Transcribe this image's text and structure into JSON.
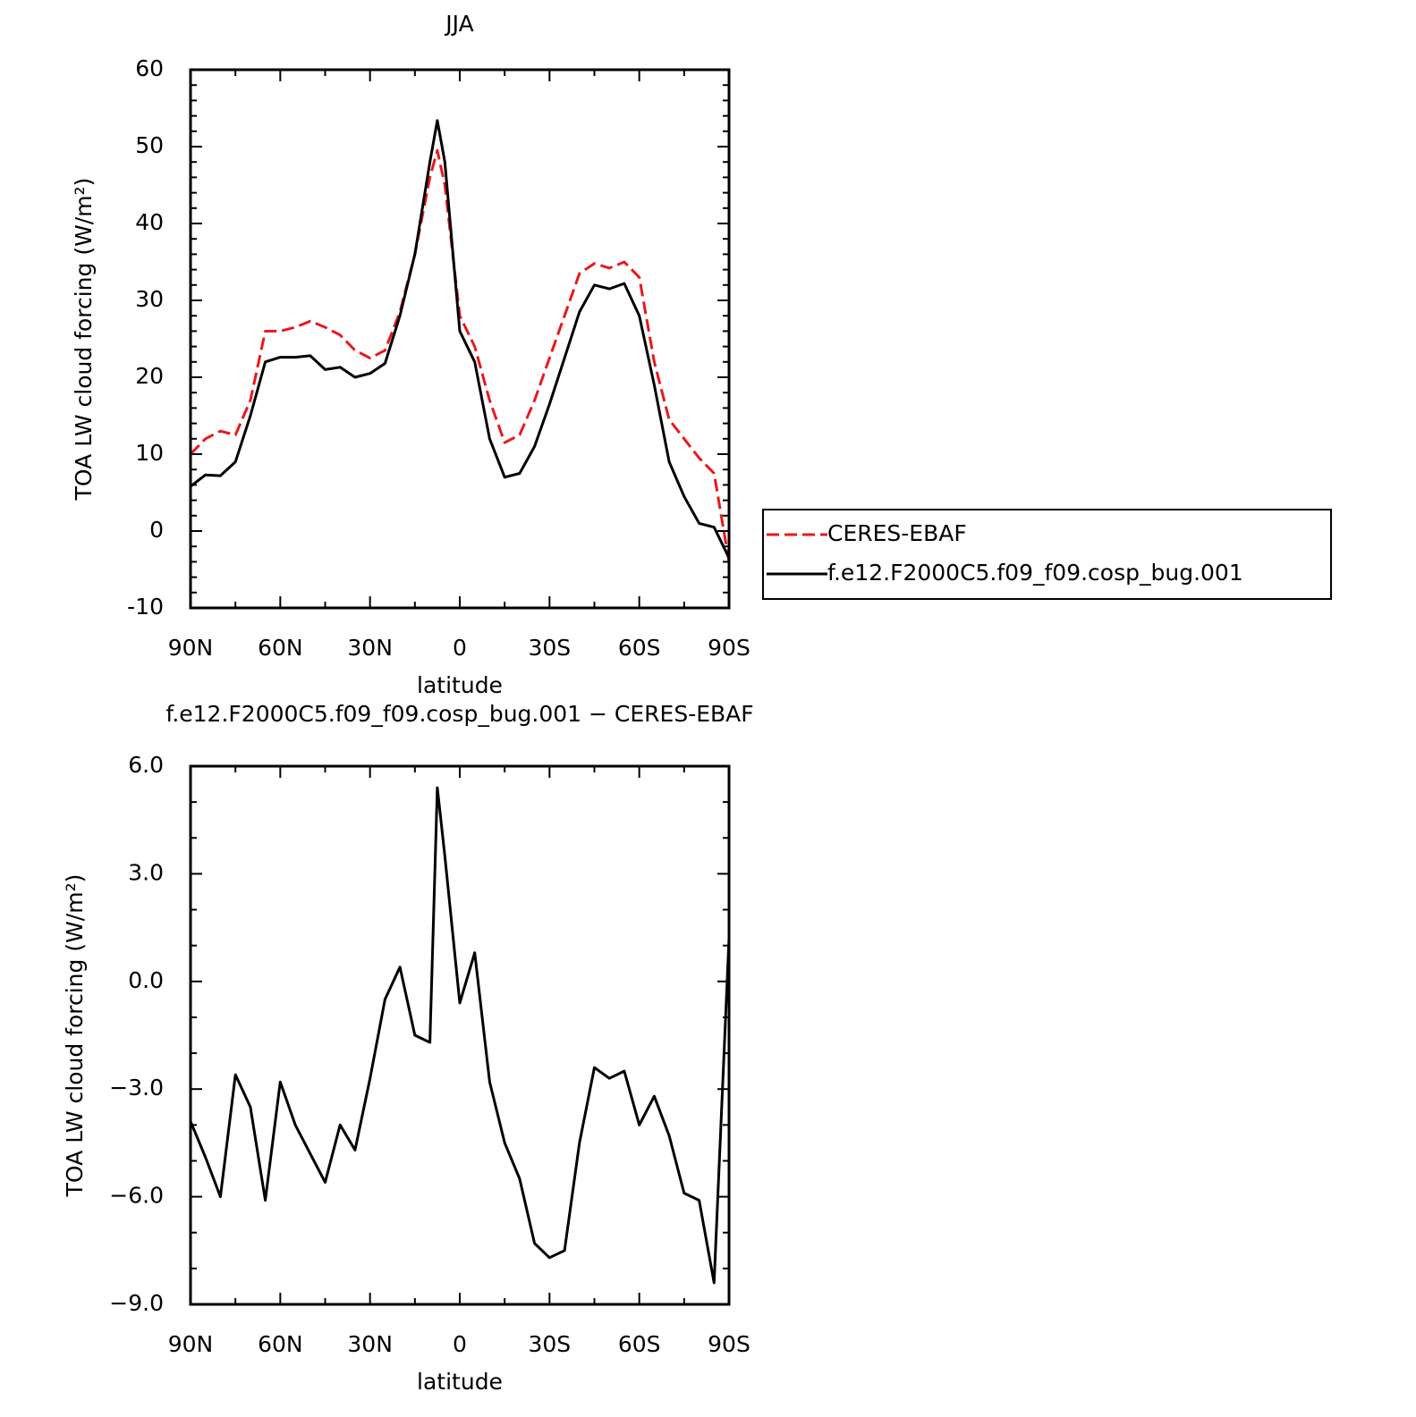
{
  "chart_data": [
    {
      "type": "line",
      "title": "JJA",
      "xlabel": "latitude",
      "ylabel": "TOA LW cloud forcing (W/m²)",
      "x": [
        90,
        85,
        80,
        75,
        70,
        65,
        60,
        55,
        50,
        45,
        40,
        35,
        30,
        25,
        20,
        15,
        10,
        7.5,
        5,
        0,
        -5,
        -10,
        -15,
        -20,
        -25,
        -30,
        -35,
        -40,
        -45,
        -50,
        -55,
        -60,
        -65,
        -70,
        -75,
        -80,
        -85,
        -90
      ],
      "xlim": [
        90,
        -90
      ],
      "xticks": [
        {
          "value": 90,
          "label": "90N"
        },
        {
          "value": 60,
          "label": "60N"
        },
        {
          "value": 30,
          "label": "30N"
        },
        0,
        {
          "value": -30,
          "label": "30S"
        },
        {
          "value": -60,
          "label": "60S"
        },
        {
          "value": -90,
          "label": "90S"
        }
      ],
      "ylim": [
        -10,
        60
      ],
      "yticks": [
        -10,
        0,
        10,
        20,
        30,
        40,
        50,
        60
      ],
      "legend": "right",
      "series": [
        {
          "name": "CERES-EBAF",
          "color": "#e8191c",
          "dash": "dashed",
          "values": [
            10,
            12,
            13,
            12.5,
            17,
            26,
            26,
            26.5,
            27.3,
            26.5,
            25.5,
            23.5,
            22.5,
            23.5,
            28.5,
            36,
            46,
            49.5,
            45,
            28,
            24,
            17,
            11.5,
            12.5,
            17,
            22.5,
            28,
            33.5,
            34.8,
            34.2,
            35,
            33,
            22,
            14.5,
            12,
            9.5,
            7.5,
            -4
          ]
        },
        {
          "name": "f.e12.F2000C5.f09_f09.cosp_bug.001",
          "color": "#000000",
          "dash": "solid",
          "values": [
            5.8,
            7.3,
            7.2,
            9,
            15,
            22,
            22.6,
            22.6,
            22.8,
            21,
            21.3,
            20,
            20.5,
            21.8,
            28,
            36,
            48,
            53.4,
            48,
            26,
            22,
            12,
            7,
            7.5,
            11,
            16.5,
            22.5,
            28.5,
            32,
            31.5,
            32.2,
            28,
            19,
            9,
            4.5,
            1,
            0.5,
            -3.5
          ]
        }
      ]
    },
    {
      "type": "line",
      "title": "f.e12.F2000C5.f09_f09.cosp_bug.001 − CERES-EBAF",
      "xlabel": "latitude",
      "ylabel": "TOA LW cloud forcing (W/m²)",
      "x": [
        90,
        85,
        80,
        75,
        70,
        65,
        60,
        55,
        50,
        45,
        40,
        35,
        30,
        25,
        20,
        15,
        10,
        7.5,
        5,
        0,
        -5,
        -10,
        -15,
        -20,
        -25,
        -30,
        -35,
        -40,
        -45,
        -50,
        -55,
        -60,
        -65,
        -70,
        -75,
        -80,
        -85,
        -90
      ],
      "xlim": [
        90,
        -90
      ],
      "xticks": [
        {
          "value": 90,
          "label": "90N"
        },
        {
          "value": 60,
          "label": "60N"
        },
        {
          "value": 30,
          "label": "30N"
        },
        0,
        {
          "value": -30,
          "label": "30S"
        },
        {
          "value": -60,
          "label": "60S"
        },
        {
          "value": -90,
          "label": "90S"
        }
      ],
      "ylim": [
        -9,
        6
      ],
      "yticks": [
        {
          "value": -9,
          "label": "−9.0"
        },
        {
          "value": -6,
          "label": "−6.0"
        },
        {
          "value": -3,
          "label": "−3.0"
        },
        {
          "value": 0,
          "label": "0.0"
        },
        {
          "value": 3,
          "label": "3.0"
        },
        {
          "value": 6,
          "label": "6.0"
        }
      ],
      "series": [
        {
          "color": "#000000",
          "dash": "solid",
          "values": [
            -3.9,
            -4.9,
            -6,
            -2.6,
            -3.5,
            -6.1,
            -2.8,
            -4,
            -4.8,
            -5.6,
            -4,
            -4.7,
            -2.7,
            -0.5,
            0.4,
            -1.5,
            -1.7,
            5.4,
            3.5,
            -0.6,
            0.8,
            -2.8,
            -4.5,
            -5.5,
            -7.3,
            -7.7,
            -7.5,
            -4.5,
            -2.4,
            -2.7,
            -2.5,
            -4,
            -3.2,
            -4.3,
            -5.9,
            -6.1,
            -8.4,
            1.2
          ]
        }
      ]
    }
  ]
}
